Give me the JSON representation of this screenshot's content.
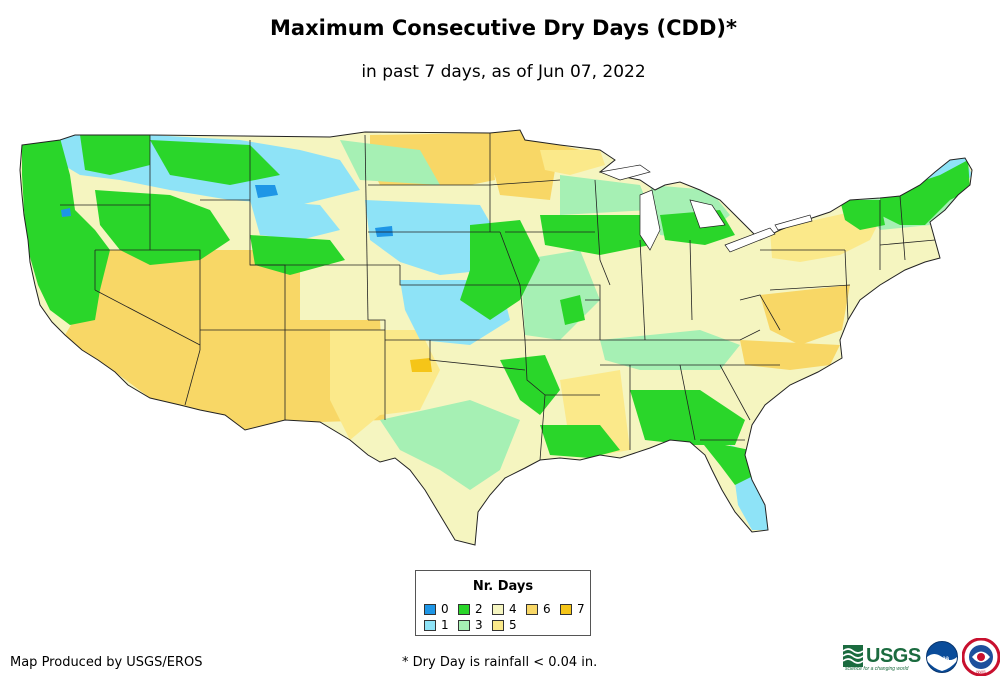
{
  "title": "Maximum Consecutive Dry Days (CDD)*",
  "subtitle": "in past 7 days, as of Jun 07, 2022",
  "legend": {
    "title": "Nr. Days",
    "items": [
      {
        "label": "0",
        "color": "#1e96e6"
      },
      {
        "label": "1",
        "color": "#8ee3f7"
      },
      {
        "label": "2",
        "color": "#2ad62a"
      },
      {
        "label": "3",
        "color": "#a6f0b4"
      },
      {
        "label": "4",
        "color": "#f5f5c0"
      },
      {
        "label": "5",
        "color": "#fbe98a"
      },
      {
        "label": "6",
        "color": "#f8d766"
      },
      {
        "label": "7",
        "color": "#f5c518"
      }
    ]
  },
  "footer": {
    "credit": "Map Produced by USGS/EROS",
    "footnote": "* Dry Day is rainfall < 0.04 in."
  },
  "logos": {
    "usgs": "USGS",
    "usgs_tagline": "science for a changing world",
    "noaa": "noaa",
    "nws": "NWS"
  }
}
